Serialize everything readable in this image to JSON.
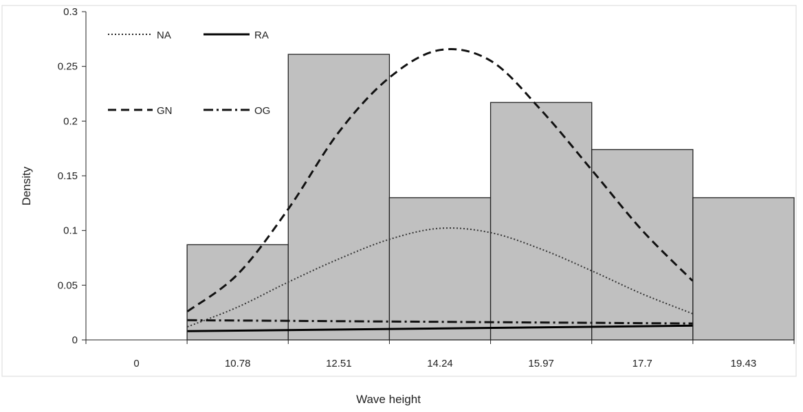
{
  "chart_data": {
    "type": "bar",
    "xlabel": "Wave height",
    "ylabel": "Density",
    "categories": [
      "0",
      "10.78",
      "12.51",
      "14.24",
      "15.97",
      "17.7",
      "19.43"
    ],
    "values": [
      0,
      0.087,
      0.261,
      0.13,
      0.217,
      0.174,
      0.13
    ],
    "ylim": [
      0,
      0.3
    ],
    "yticks": [
      "0",
      "0.05",
      "0.1",
      "0.15",
      "0.2",
      "0.25",
      "0.3"
    ],
    "bar_color": "#c0c0c0",
    "grid": false,
    "legend_position": "top-left",
    "series": [
      {
        "name": "NA",
        "style": "dotted",
        "type": "line",
        "x": [
          9.92,
          10.78,
          11.65,
          12.51,
          13.38,
          14.24,
          15.11,
          15.97,
          16.84,
          17.7,
          18.56
        ],
        "y": [
          0.012,
          0.03,
          0.053,
          0.074,
          0.092,
          0.102,
          0.098,
          0.083,
          0.063,
          0.042,
          0.024
        ]
      },
      {
        "name": "RA",
        "style": "solid",
        "type": "line",
        "x": [
          9.92,
          18.56
        ],
        "y": [
          0.008,
          0.013
        ]
      },
      {
        "name": "GN",
        "style": "dashed",
        "type": "line",
        "x": [
          9.92,
          10.78,
          11.65,
          12.51,
          13.38,
          14.24,
          15.11,
          15.97,
          16.84,
          17.7,
          18.56
        ],
        "y": [
          0.026,
          0.06,
          0.12,
          0.19,
          0.24,
          0.265,
          0.255,
          0.21,
          0.155,
          0.1,
          0.054
        ]
      },
      {
        "name": "OG",
        "style": "dash-dot",
        "type": "line",
        "x": [
          9.92,
          18.56
        ],
        "y": [
          0.018,
          0.015
        ]
      }
    ]
  }
}
